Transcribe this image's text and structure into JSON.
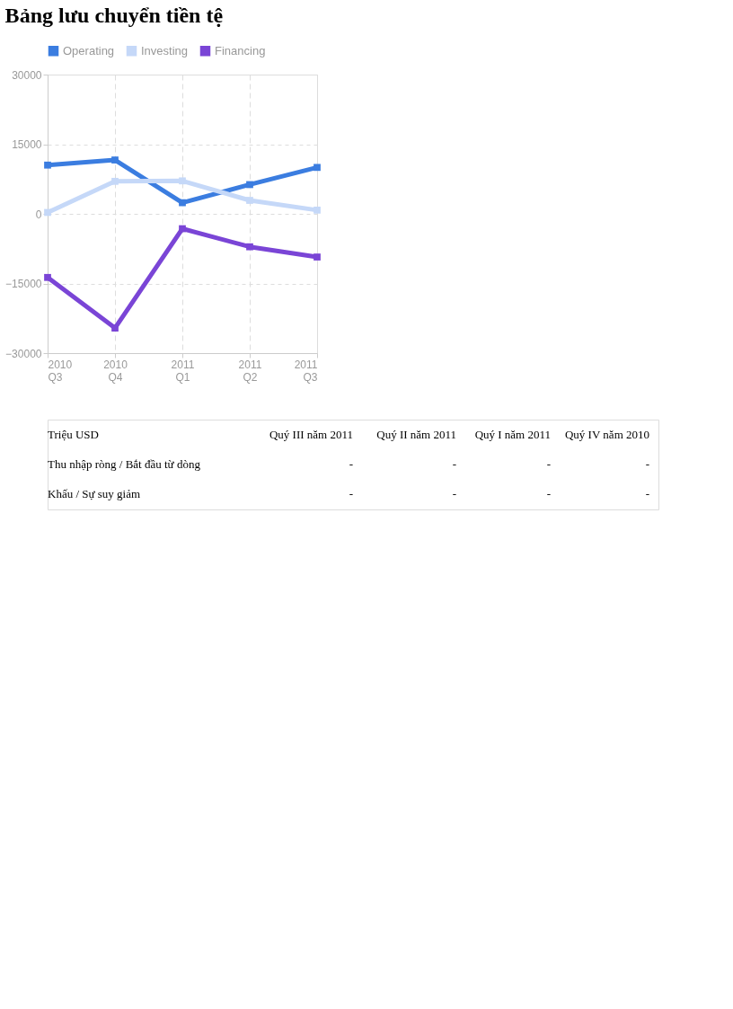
{
  "chart_data": {
    "type": "line",
    "title": "Bảng lưu chuyển tiền tệ",
    "categories": [
      "2010 Q3",
      "2010 Q4",
      "2011 Q1",
      "2011 Q2",
      "2011 Q3"
    ],
    "series": [
      {
        "name": "Operating",
        "color": "#3b7de0",
        "values": [
          10500,
          11600,
          2400,
          6300,
          10000
        ]
      },
      {
        "name": "Investing",
        "color": "#c5d8f8",
        "values": [
          300,
          7000,
          7100,
          2900,
          800
        ]
      },
      {
        "name": "Financing",
        "color": "#7a45d6",
        "values": [
          -13700,
          -24600,
          -3200,
          -7100,
          -9300
        ]
      }
    ],
    "ylim": [
      -30000,
      30000
    ],
    "yticks": [
      -30000,
      -15000,
      0,
      15000,
      30000
    ],
    "grid": true,
    "legend": "top",
    "marker": "square",
    "line_style": "solid",
    "annotations": [
      "Triệu USD",
      "Quý III năm 2011",
      "Quý II năm 2011",
      "Quý I năm 2011",
      "Quý IV năm 2010",
      "Thu nhập ròng / Bắt đầu từ dòng",
      "-",
      "-",
      "-",
      "-",
      "Khấu / Sự suy giảm",
      "-",
      "-",
      "-",
      "-"
    ]
  }
}
